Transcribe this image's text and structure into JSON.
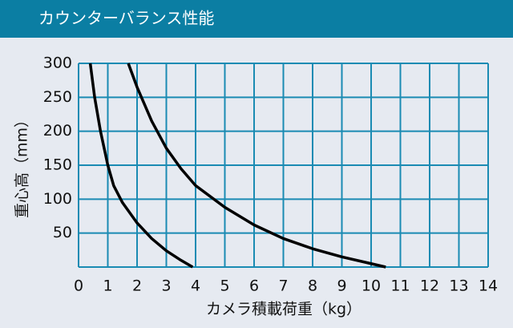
{
  "chart_data": {
    "type": "line",
    "title": "カウンターバランス性能",
    "x_label": "カメラ積載荷重（kg）",
    "y_label": "重心高（mm）",
    "xlim": [
      0,
      14
    ],
    "xticks": [
      0,
      1,
      2,
      3,
      4,
      5,
      6,
      7,
      8,
      9,
      10,
      11,
      12,
      13,
      14
    ],
    "ylim": [
      0,
      300
    ],
    "yticks": [
      50,
      100,
      150,
      200,
      250,
      300
    ],
    "grid": true,
    "series": [
      {
        "color": "#000000",
        "x": [
          0.4,
          0.55,
          0.75,
          1.0,
          1.2,
          1.5,
          2.0,
          2.5,
          3.0,
          3.5,
          3.9
        ],
        "values": [
          300,
          250,
          200,
          150,
          120,
          95,
          65,
          42,
          24,
          10,
          0
        ]
      },
      {
        "color": "#000000",
        "x": [
          1.7,
          2.0,
          2.5,
          3.0,
          3.5,
          4.0,
          5.0,
          6.0,
          7.0,
          8.0,
          9.0,
          10.0,
          10.5
        ],
        "values": [
          300,
          265,
          215,
          175,
          145,
          120,
          88,
          62,
          42,
          27,
          15,
          5,
          0
        ]
      }
    ]
  }
}
